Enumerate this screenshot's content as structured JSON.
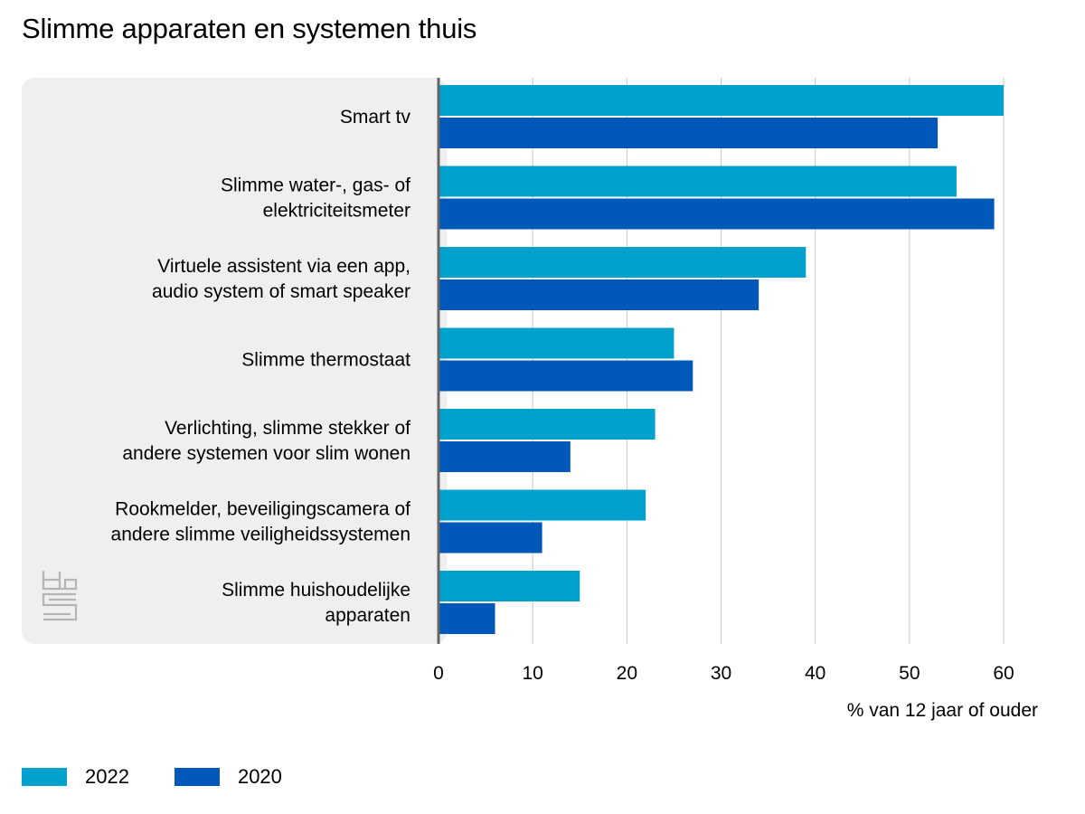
{
  "chart_data": {
    "type": "bar",
    "orientation": "horizontal",
    "title": "Slimme apparaten en systemen thuis",
    "xlabel": "% van 12 jaar of ouder",
    "ylabel": "",
    "xlim": [
      0,
      60
    ],
    "x_ticks": [
      0,
      10,
      20,
      30,
      40,
      50,
      60
    ],
    "grid": true,
    "legend_placement": "bottom-left",
    "categories": [
      [
        "Smart tv"
      ],
      [
        "Slimme water-, gas- of",
        "elektriciteitsmeter"
      ],
      [
        "Virtuele assistent via een app,",
        "audio system of smart speaker"
      ],
      [
        "Slimme thermostaat"
      ],
      [
        "Verlichting, slimme stekker of",
        "andere systemen voor slim wonen"
      ],
      [
        "Rookmelder, beveiligingscamera of",
        "andere slimme veiligheidssystemen"
      ],
      [
        "Slimme huishoudelijke",
        "apparaten"
      ]
    ],
    "series": [
      {
        "name": "2022",
        "color": "#00a1cd",
        "values": [
          60,
          55,
          39,
          25,
          23,
          22,
          15
        ]
      },
      {
        "name": "2020",
        "color": "#0058b8",
        "values": [
          53,
          59,
          34,
          27,
          14,
          11,
          6
        ]
      }
    ],
    "colors": {
      "label_panel": "#efefef",
      "gridline": "#c8c8c8",
      "axis": "#666666",
      "logo": "#b5b5b5"
    },
    "logo_icon": "cbs-logo-icon"
  }
}
